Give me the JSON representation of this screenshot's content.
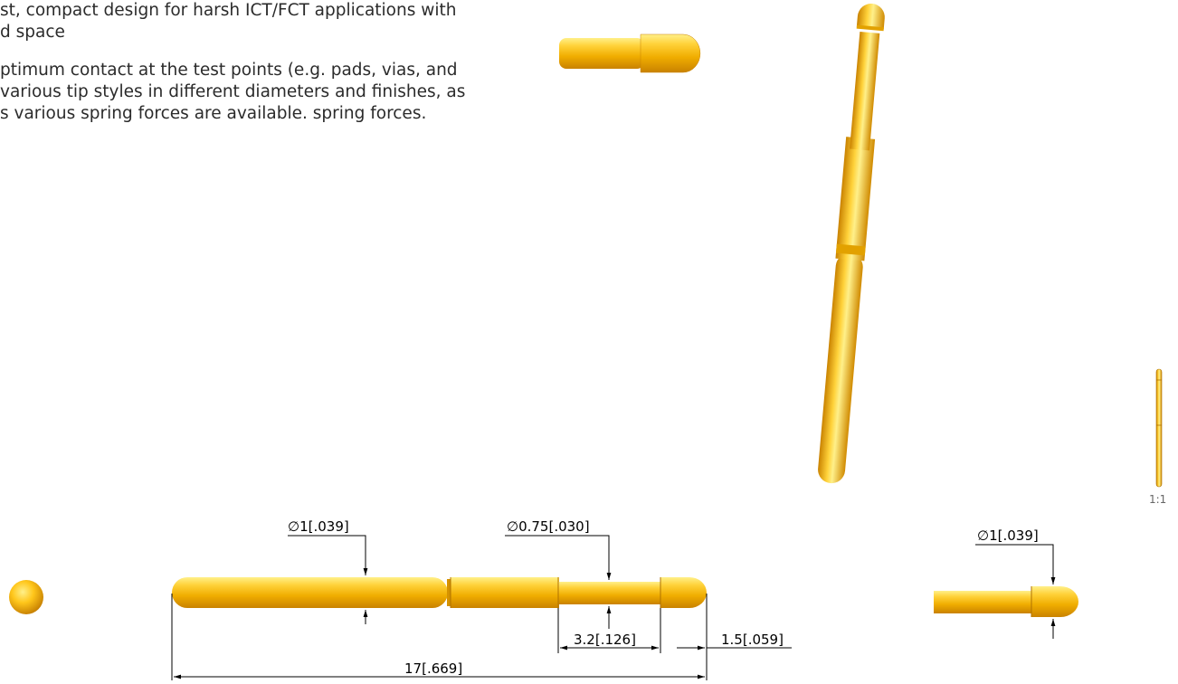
{
  "description": {
    "paragraph1": "st, compact design for harsh ICT/FCT applications with d space",
    "paragraph1_line1": "st, compact design for harsh ICT/FCT applications with",
    "paragraph1_line2": "d space",
    "paragraph2_line1": "ptimum contact at the test points (e.g. pads, vias, and",
    "paragraph2_line2": "various tip styles in different diameters and finishes, as",
    "paragraph2_line3": "s various spring forces are available. spring forces."
  },
  "dimensions": {
    "diameter_body": "∅1[.039]",
    "diameter_tip": "∅0.75[.030]",
    "diameter_side": "∅1[.039]",
    "tip_length": "3.2[.126]",
    "head_length": "1.5[.059]",
    "overall_length": "17[.669]"
  },
  "scale_label": "1:1",
  "colors": {
    "gold_light": "#ffd23a",
    "gold_mid": "#f5b800",
    "gold_dark": "#d08a00",
    "dimension_line": "#000000"
  }
}
